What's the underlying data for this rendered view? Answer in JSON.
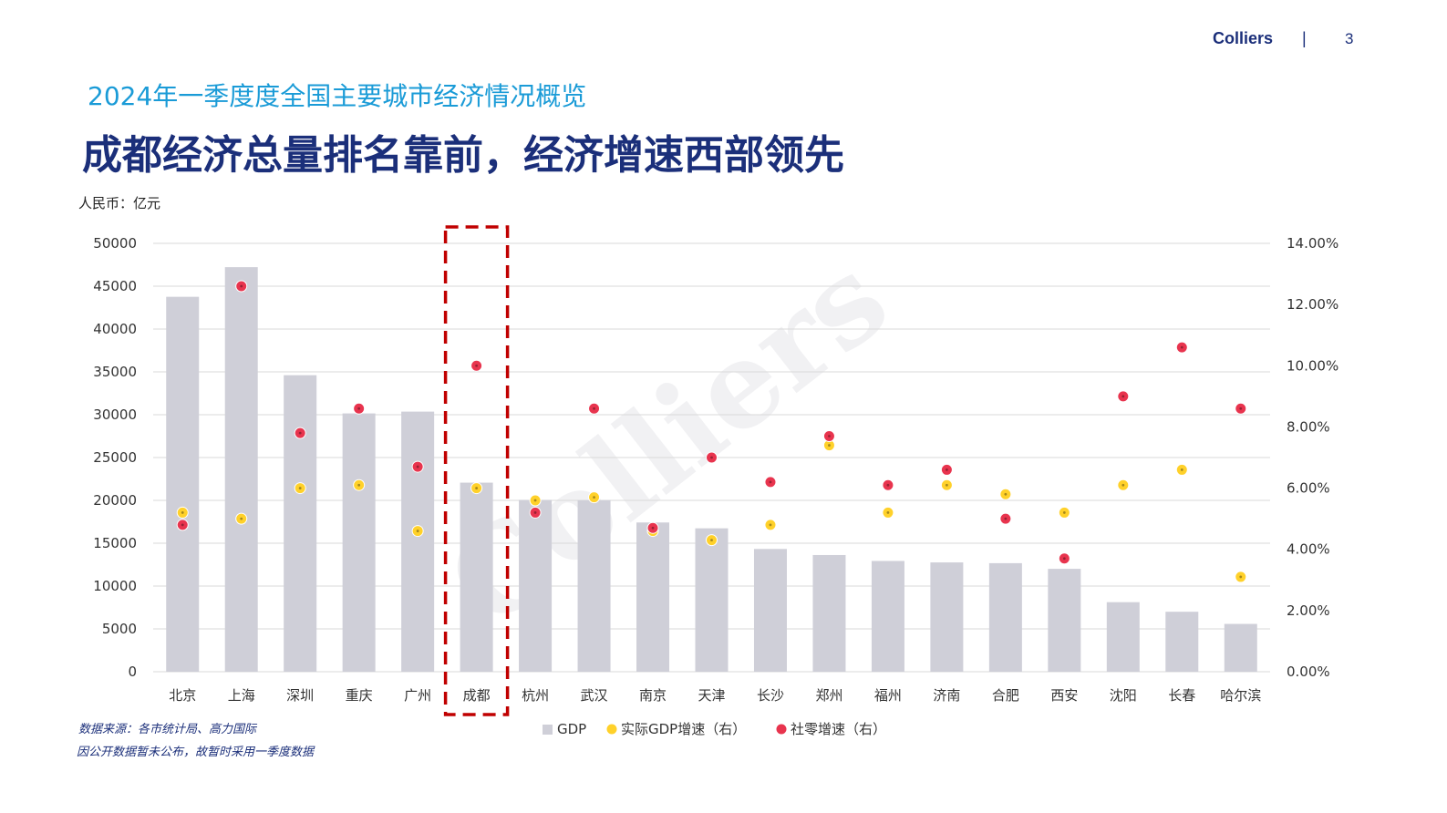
{
  "header": {
    "brand": "Colliers",
    "divider": "|",
    "page_number": "3"
  },
  "subtitle": "2024年一季度度全国主要城市经济情况概览",
  "title": "成都经济总量排名靠前，经济增速西部领先",
  "unit_label": "人民币：亿元",
  "notes": [
    "数据来源：各市统计局、高力国际",
    "因公开数据暂未公布，故暂时采用一季度数据"
  ],
  "watermark": "Colliers",
  "colors": {
    "bar": "#cfcfd8",
    "gdp_growth": "#ffd12a",
    "retail_growth": "#e8344e",
    "highlight": "#c00000",
    "gridline": "#d9d9d9"
  },
  "chart_data": {
    "type": "bar",
    "categories": [
      "北京",
      "上海",
      "深圳",
      "重庆",
      "广州",
      "成都",
      "杭州",
      "武汉",
      "南京",
      "天津",
      "长沙",
      "郑州",
      "福州",
      "济南",
      "合肥",
      "西安",
      "沈阳",
      "长春",
      "哈尔滨"
    ],
    "series": [
      {
        "name": "GDP",
        "axis": "left",
        "type": "bar",
        "values": [
          43760,
          47220,
          34610,
          30150,
          30360,
          22070,
          20060,
          20010,
          17420,
          16740,
          14330,
          13620,
          12930,
          12760,
          12670,
          12010,
          8120,
          7000,
          5580
        ]
      },
      {
        "name": "实际GDP增速（右）",
        "axis": "right",
        "type": "scatter",
        "values": [
          5.2,
          5.0,
          6.0,
          6.1,
          4.6,
          6.0,
          5.6,
          5.7,
          4.6,
          4.3,
          4.8,
          7.4,
          5.2,
          6.1,
          5.8,
          5.2,
          6.1,
          6.6,
          3.1
        ]
      },
      {
        "name": "社零增速（右）",
        "axis": "right",
        "type": "scatter",
        "values": [
          4.8,
          12.6,
          7.8,
          8.6,
          6.7,
          10.0,
          5.2,
          8.6,
          4.7,
          7.0,
          6.2,
          7.7,
          6.1,
          6.6,
          5.0,
          3.7,
          9.0,
          10.6,
          8.6
        ]
      }
    ],
    "y_left": {
      "min": 0,
      "max": 50000,
      "ticks": [
        "0",
        "5000",
        "10000",
        "15000",
        "20000",
        "25000",
        "30000",
        "35000",
        "40000",
        "45000",
        "50000"
      ]
    },
    "y_right": {
      "min": 0,
      "max": 14,
      "ticks": [
        "0.00%",
        "2.00%",
        "4.00%",
        "6.00%",
        "8.00%",
        "10.00%",
        "12.00%",
        "14.00%"
      ]
    },
    "highlight_category": "成都",
    "grid": true,
    "legend": "bottom"
  }
}
